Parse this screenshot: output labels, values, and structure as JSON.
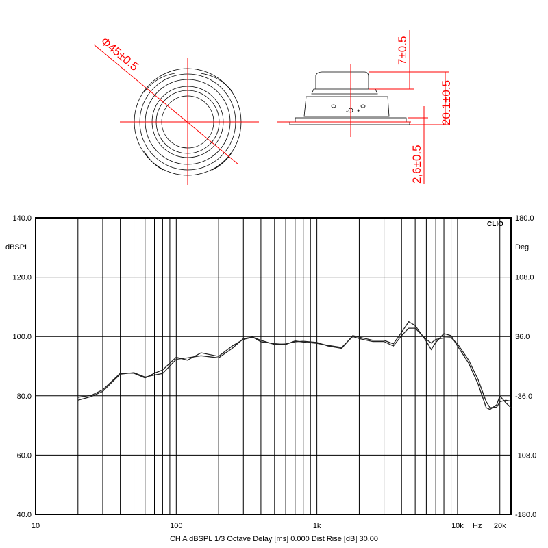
{
  "drawing": {
    "diameter_label": "Φ45±0.5",
    "dim_top": "7±0.5",
    "dim_height": "20.1±0.5",
    "dim_flange": "2,6±0.5",
    "terminal_minus": "-",
    "terminal_plus": "+",
    "dimension_color": "#ff0000"
  },
  "chart_data": {
    "type": "line",
    "xscale": "log",
    "xlim": [
      10,
      24000
    ],
    "ylim": [
      40,
      140
    ],
    "y2lim": [
      -180,
      180
    ],
    "ylabel": "dBSPL",
    "y2label": "Deg",
    "brand": "CLIO",
    "x_unit": "Hz",
    "grid": true,
    "yticks": [
      "140.0",
      "120.0",
      "100.0",
      "80.0",
      "60.0",
      "40.0"
    ],
    "y2ticks": [
      "180.0",
      "108.0",
      "36.0",
      "-36.0",
      "-108.0",
      "-180.0"
    ],
    "xticks": [
      {
        "v": 10,
        "label": "10"
      },
      {
        "v": 100,
        "label": "100"
      },
      {
        "v": 1000,
        "label": "1k"
      },
      {
        "v": 10000,
        "label": "10k"
      },
      {
        "v": 20000,
        "label": "20k"
      }
    ],
    "footer": "CH A   dBSPL   1/3 Octave   Delay [ms] 0.000   Dist Rise [dB] 30.00",
    "x": [
      20,
      25,
      30,
      40,
      50,
      60,
      70,
      80,
      100,
      120,
      150,
      200,
      250,
      300,
      350,
      400,
      500,
      600,
      700,
      800,
      1000,
      1200,
      1500,
      1800,
      2000,
      2500,
      3000,
      3500,
      4000,
      4500,
      5000,
      6000,
      6500,
      7000,
      8000,
      9000,
      10000,
      12000,
      14000,
      16000,
      17000,
      19000,
      20000,
      22000,
      24000
    ],
    "series": [
      {
        "values": [
          79.5,
          80.2,
          82,
          87.6,
          87.6,
          86,
          87.6,
          88.7,
          93,
          92,
          94.5,
          93.3,
          96.8,
          99,
          99.8,
          98.7,
          97.3,
          97.5,
          98.2,
          98.4,
          98,
          96.8,
          96,
          100.3,
          99.8,
          98.7,
          98.7,
          97.5,
          101.4,
          105,
          103.7,
          98.4,
          95.6,
          98,
          101,
          100.3,
          96.8,
          91,
          84,
          76,
          75.4,
          77,
          80,
          77.7,
          76
        ]
      },
      {
        "values": [
          78.5,
          79.8,
          81.5,
          87.3,
          87.8,
          86.3,
          87,
          87.5,
          92.3,
          92.8,
          93.5,
          92.8,
          96,
          99.3,
          99.8,
          98.2,
          97.6,
          97.3,
          98.5,
          98.1,
          97.7,
          97,
          96.3,
          100,
          99.3,
          98.3,
          98.3,
          96.8,
          100.3,
          102.8,
          102.8,
          99,
          97.8,
          99,
          99.5,
          99.6,
          97.5,
          92,
          85.5,
          78,
          76,
          76.2,
          78,
          78.5,
          78.2
        ]
      }
    ]
  }
}
